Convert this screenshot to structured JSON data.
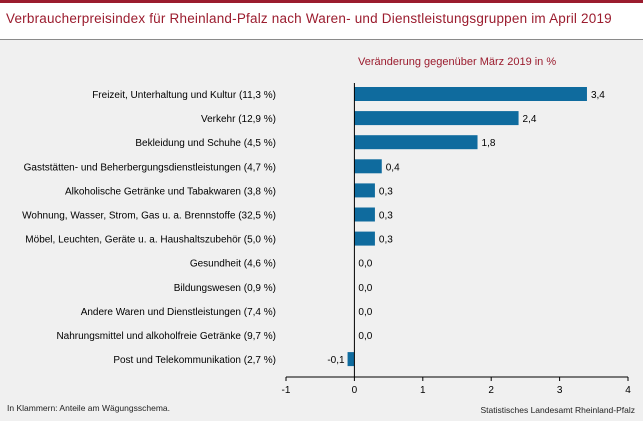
{
  "title": "Verbraucherpreisindex für Rheinland-Pfalz nach Waren- und Dienstleistungsgruppen im April 2019",
  "footnote": "In Klammern: Anteile am Wägungsschema.",
  "source": "Statistisches Landesamt Rheinland-Pfalz",
  "colors": {
    "accent": "#9b1c2e",
    "bar": "#0f6b9e",
    "panel": "#f0f0f0"
  },
  "chart_data": {
    "type": "bar",
    "orientation": "horizontal",
    "subtitle": "Veränderung gegenüber März 2019 in %",
    "categories": [
      "Freizeit, Unterhaltung und Kultur (11,3 %)",
      "Verkehr (12,9 %)",
      "Bekleidung und Schuhe (4,5 %)",
      "Gaststätten- und Beherbergungsdienstleistungen (4,7 %)",
      "Alkoholische Getränke und Tabakwaren (3,8 %)",
      "Wohnung, Wasser, Strom, Gas u. a. Brennstoffe (32,5 %)",
      "Möbel, Leuchten, Geräte u. a. Haushaltszubehör (5,0 %)",
      "Gesundheit (4,6 %)",
      "Bildungswesen (0,9 %)",
      "Andere Waren und Dienstleistungen (7,4 %)",
      "Nahrungsmittel und alkoholfreie Getränke (9,7 %)",
      "Post und Telekommunikation (2,7 %)"
    ],
    "values": [
      3.4,
      2.4,
      1.8,
      0.4,
      0.3,
      0.3,
      0.3,
      0.0,
      0.0,
      0.0,
      0.0,
      -0.1
    ],
    "value_labels": [
      "3,4",
      "2,4",
      "1,8",
      "0,4",
      "0,3",
      "0,3",
      "0,3",
      "0,0",
      "0,0",
      "0,0",
      "0,0",
      "-0,1"
    ],
    "xlim": [
      -1,
      4
    ],
    "xticks": [
      -1,
      0,
      1,
      2,
      3,
      4
    ],
    "xtick_labels": [
      "-1",
      "0",
      "1",
      "2",
      "3",
      "4"
    ],
    "xlabel": "",
    "ylabel": "",
    "grid": false,
    "legend": "none"
  }
}
